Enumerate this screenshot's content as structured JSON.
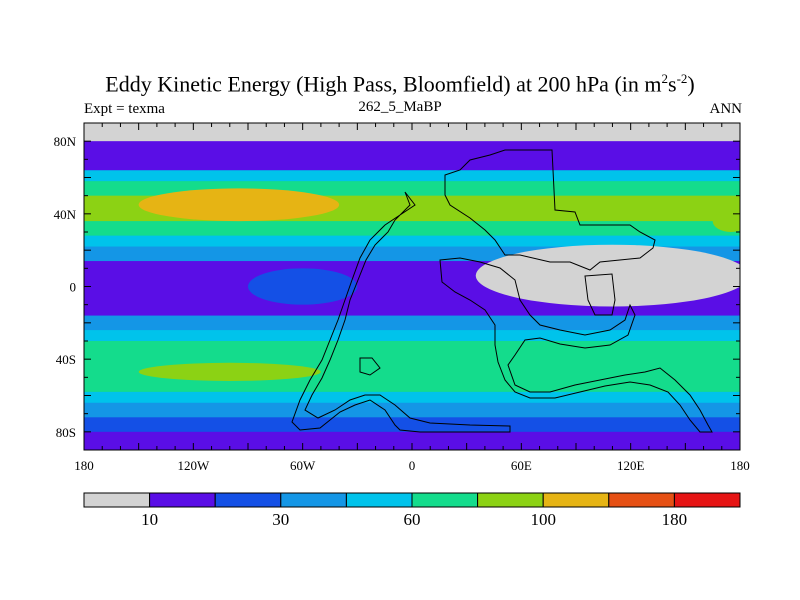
{
  "chart_data": {
    "type": "heatmap",
    "title": {
      "main": "Eddy Kinetic Energy (High Pass, Bloomfield) at 200 hPa (in m",
      "sup1": "2",
      "mid": "s",
      "sup2": "-2",
      "end": ")"
    },
    "left_string": "Expt = texma",
    "center_string": "262_5_MaBP",
    "right_string": "ANN",
    "x_ticks": [
      {
        "lon": -180,
        "label": "180"
      },
      {
        "lon": -120,
        "label": "120W"
      },
      {
        "lon": -60,
        "label": "60W"
      },
      {
        "lon": 0,
        "label": "0"
      },
      {
        "lon": 60,
        "label": "60E"
      },
      {
        "lon": 120,
        "label": "120E"
      },
      {
        "lon": 180,
        "label": "180"
      }
    ],
    "y_ticks": [
      {
        "lat": 80,
        "label": "80N"
      },
      {
        "lat": 40,
        "label": "40N"
      },
      {
        "lat": 0,
        "label": "0"
      },
      {
        "lat": -40,
        "label": "40S"
      },
      {
        "lat": -80,
        "label": "80S"
      }
    ],
    "xlim": [
      -180,
      180
    ],
    "ylim": [
      -90,
      90
    ],
    "colorbar": {
      "colors": [
        "#d3d3d3",
        "#5a0ee6",
        "#1450e6",
        "#1496e6",
        "#00c3eb",
        "#14dc8c",
        "#8cd214",
        "#e6b414",
        "#e65014",
        "#e61414"
      ],
      "labels": [
        {
          "after_box": 1,
          "text": "10"
        },
        {
          "after_box": 3,
          "text": "30"
        },
        {
          "after_box": 5,
          "text": "60"
        },
        {
          "after_box": 7,
          "text": "100"
        },
        {
          "after_box": 9,
          "text": "180"
        }
      ]
    },
    "field_bands": [
      {
        "lat": [
          80,
          90
        ],
        "level": 0
      },
      {
        "lat": [
          72,
          80
        ],
        "level": 1
      },
      {
        "lat": [
          64,
          72
        ],
        "level": 1
      },
      {
        "lat": [
          58,
          64
        ],
        "level": 4
      },
      {
        "lat": [
          50,
          58
        ],
        "level": 5
      },
      {
        "lat": [
          36,
          50
        ],
        "level": 6
      },
      {
        "lat": [
          28,
          36
        ],
        "level": 5
      },
      {
        "lat": [
          22,
          28
        ],
        "level": 4
      },
      {
        "lat": [
          14,
          22
        ],
        "level": 3
      },
      {
        "lat": [
          -16,
          14
        ],
        "level": 1
      },
      {
        "lat": [
          -24,
          -16
        ],
        "level": 3
      },
      {
        "lat": [
          -30,
          -24
        ],
        "level": 4
      },
      {
        "lat": [
          -38,
          -30
        ],
        "level": 5
      },
      {
        "lat": [
          -58,
          -38
        ],
        "level": 5
      },
      {
        "lat": [
          -64,
          -58
        ],
        "level": 4
      },
      {
        "lat": [
          -72,
          -64
        ],
        "level": 3
      },
      {
        "lat": [
          -80,
          -72
        ],
        "level": 2
      },
      {
        "lat": [
          -90,
          -80
        ],
        "level": 1
      }
    ],
    "field_blobs": [
      {
        "lon": -95,
        "lat": 45,
        "rlon": 55,
        "rlat": 9,
        "level": 7
      },
      {
        "lon": -100,
        "lat": -47,
        "rlon": 50,
        "rlat": 5,
        "level": 6
      },
      {
        "lon": -60,
        "lat": 0,
        "rlon": 30,
        "rlat": 10,
        "level": 2
      },
      {
        "lon": 110,
        "lat": 6,
        "rlon": 75,
        "rlat": 17,
        "level": 0
      },
      {
        "lon": 175,
        "lat": 36,
        "rlon": 10,
        "rlat": 6,
        "level": 6
      }
    ]
  }
}
